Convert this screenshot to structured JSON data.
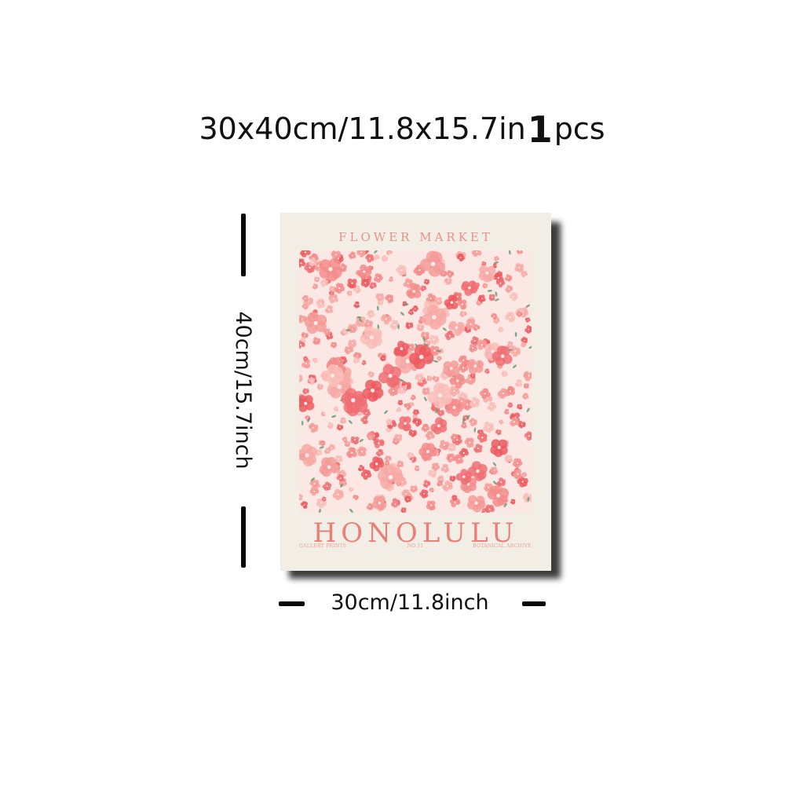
{
  "headline": {
    "size_text": "30x40cm/11.8x15.7in",
    "quantity_number": "1",
    "quantity_unit": "pcs"
  },
  "poster": {
    "header": "FLOWER MARKET",
    "city": "HONOLULU",
    "footer_left": "GALLERY PRINTS",
    "footer_mid": "NO.11",
    "footer_right": "BOTANICAL ARCHIVE",
    "colors": {
      "paper": "#f2eee6",
      "accent": "#ea7f77",
      "petal_dark": "#ef5f64",
      "petal_light": "#f7a9a6",
      "leaf": "#5f9a6f"
    }
  },
  "dimensions": {
    "height_label": "40cm/15.7inch",
    "width_label": "30cm/11.8inch"
  }
}
